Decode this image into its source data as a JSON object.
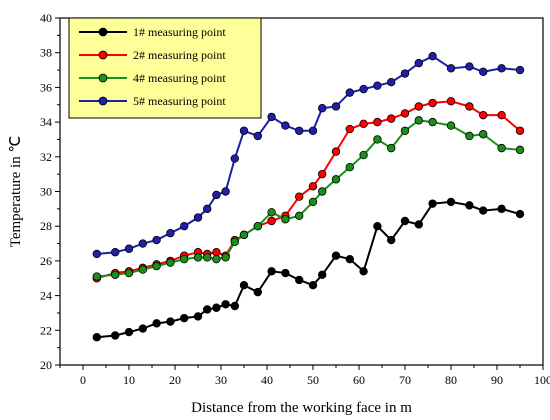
{
  "chart_data": {
    "type": "line",
    "xlabel": "Distance from the working face in m",
    "ylabel": "Temperature in ℃",
    "xlim": [
      -5,
      100
    ],
    "ylim": [
      20,
      40
    ],
    "xticks": [
      "0",
      "10",
      "20",
      "30",
      "40",
      "50",
      "60",
      "70",
      "80",
      "90",
      "100"
    ],
    "yticks": [
      "20",
      "22",
      "24",
      "26",
      "28",
      "30",
      "32",
      "34",
      "36",
      "38",
      "40"
    ],
    "legend_position": "top-left",
    "legend_background": "#ffff99",
    "x": [
      3,
      7,
      10,
      13,
      16,
      19,
      22,
      25,
      27,
      29,
      31,
      33,
      35,
      38,
      41,
      44,
      47,
      50,
      52,
      55,
      58,
      61,
      64,
      67,
      70,
      73,
      76,
      80,
      84,
      87,
      91,
      95
    ],
    "series": [
      {
        "name": "1# measuring point",
        "color": "#000000",
        "values": [
          21.6,
          21.7,
          21.9,
          22.1,
          22.4,
          22.5,
          22.7,
          22.8,
          23.2,
          23.3,
          23.5,
          23.4,
          24.6,
          24.2,
          25.4,
          25.3,
          24.9,
          24.6,
          25.2,
          26.3,
          26.1,
          25.4,
          28.0,
          27.2,
          28.3,
          28.1,
          29.3,
          29.4,
          29.2,
          28.9,
          29.0,
          28.7
        ]
      },
      {
        "name": "2# measuring point",
        "color": "#ff0000",
        "values": [
          25.0,
          25.3,
          25.4,
          25.6,
          25.8,
          26.0,
          26.3,
          26.5,
          26.4,
          26.5,
          26.3,
          27.2,
          27.5,
          28.0,
          28.3,
          28.6,
          29.7,
          30.3,
          31.0,
          32.3,
          33.6,
          33.9,
          34.0,
          34.2,
          34.5,
          34.9,
          35.1,
          35.2,
          34.9,
          34.4,
          34.4,
          33.5
        ]
      },
      {
        "name": "4# measuring point",
        "color": "#1a8f1a",
        "values": [
          25.1,
          25.2,
          25.3,
          25.5,
          25.7,
          25.9,
          26.1,
          26.2,
          26.2,
          26.1,
          26.2,
          27.1,
          27.5,
          28.0,
          28.8,
          28.4,
          28.6,
          29.4,
          30.0,
          30.7,
          31.4,
          32.1,
          33.0,
          32.5,
          33.5,
          34.1,
          34.0,
          33.8,
          33.2,
          33.3,
          32.5,
          32.4
        ]
      },
      {
        "name": "5# measuring point",
        "color": "#1f1fa8",
        "values": [
          26.4,
          26.5,
          26.7,
          27.0,
          27.2,
          27.6,
          28.0,
          28.5,
          29.0,
          29.8,
          30.0,
          31.9,
          33.5,
          33.2,
          34.3,
          33.8,
          33.5,
          33.5,
          34.8,
          34.9,
          35.7,
          35.9,
          36.1,
          36.3,
          36.8,
          37.4,
          37.8,
          37.1,
          37.2,
          36.9,
          37.1,
          37.0
        ]
      }
    ]
  }
}
